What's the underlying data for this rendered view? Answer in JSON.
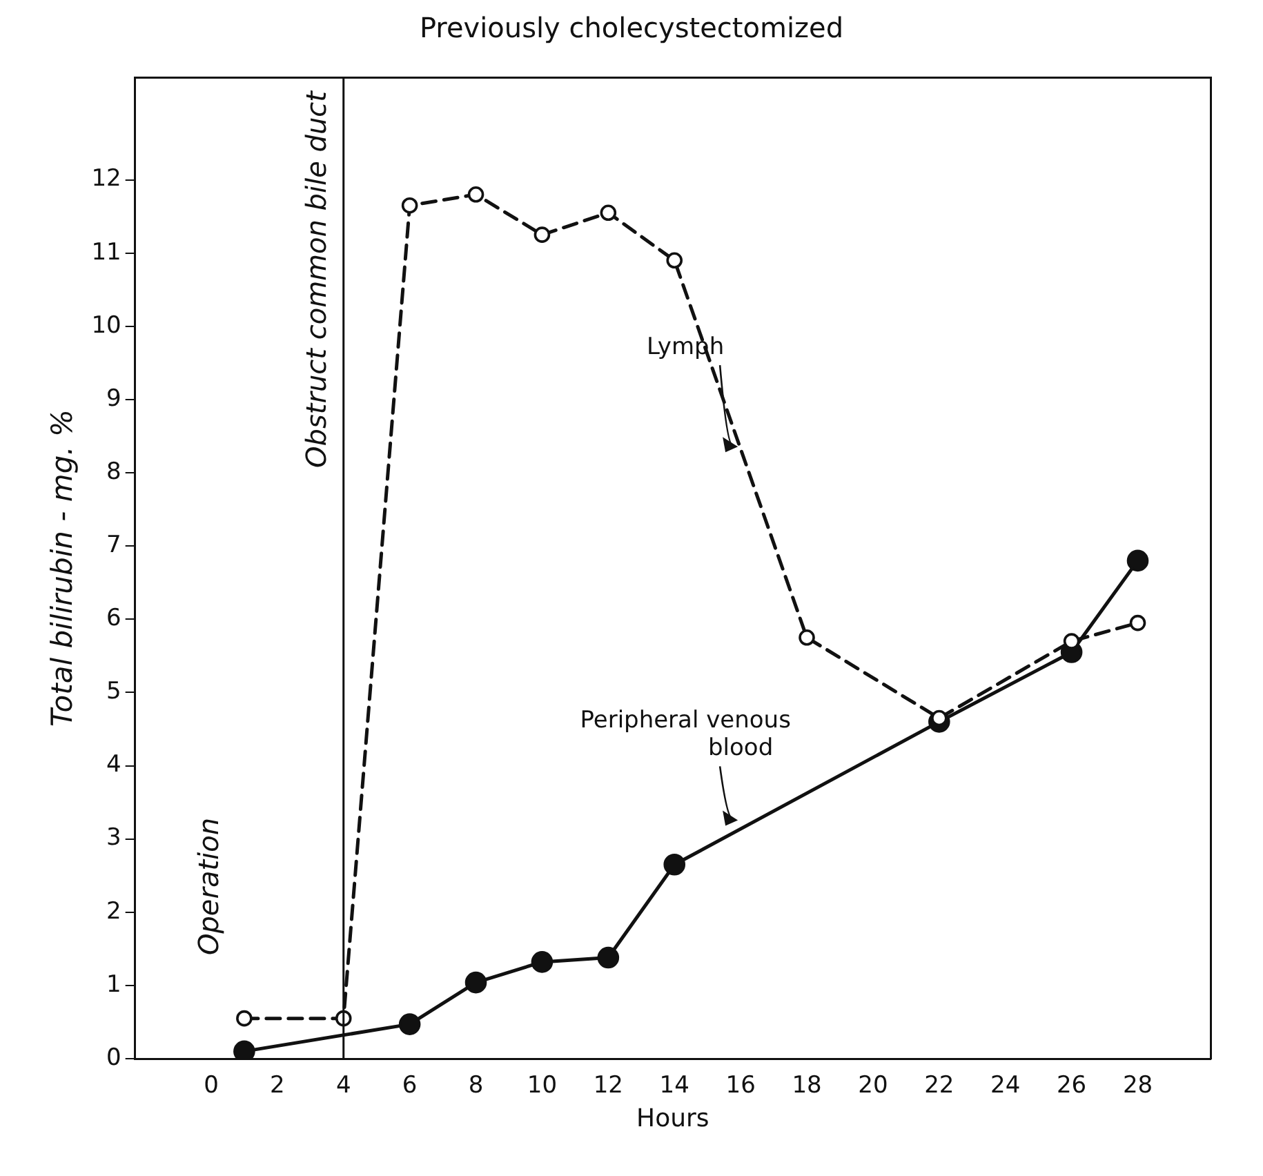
{
  "chart_data": {
    "type": "line",
    "title": "Previously cholecystectomized",
    "xlabel": "Hours",
    "ylabel": "Total bilirubin - mg. %",
    "xlim": [
      -2.3,
      30.2
    ],
    "xticks": [
      0,
      2,
      4,
      6,
      8,
      10,
      12,
      14,
      16,
      18,
      20,
      22,
      24,
      26,
      28
    ],
    "ylim": [
      0,
      13.4
    ],
    "yticks": [
      0,
      1,
      2,
      3,
      4,
      5,
      6,
      7,
      8,
      9,
      10,
      11,
      12
    ],
    "grid": false,
    "legend": false,
    "marker": "circle",
    "series": [
      {
        "color": "#111111",
        "line_style": "dashed",
        "x": [
          1,
          4,
          6,
          8,
          10,
          12,
          14,
          18,
          22,
          26,
          28
        ],
        "values": [
          0.55,
          0.55,
          11.65,
          11.8,
          11.25,
          11.55,
          10.9,
          5.75,
          4.65,
          5.7,
          5.95
        ]
      },
      {
        "color": "#111111",
        "line_style": "solid",
        "x": [
          1,
          6,
          8,
          10,
          12,
          14,
          22,
          26,
          28
        ],
        "values": [
          0.1,
          0.47,
          1.04,
          1.32,
          1.38,
          2.65,
          4.6,
          5.55,
          6.8
        ]
      }
    ],
    "ref_lines": [
      {
        "axis": "x",
        "value": 4,
        "label": "Obstruct common bile duct"
      }
    ],
    "annotations": [
      {
        "text": "Lymph",
        "x": 16,
        "y": 8.3
      },
      {
        "text": "Peripheral venous blood",
        "x": 16,
        "y": 3.2
      },
      "Operation"
    ]
  }
}
